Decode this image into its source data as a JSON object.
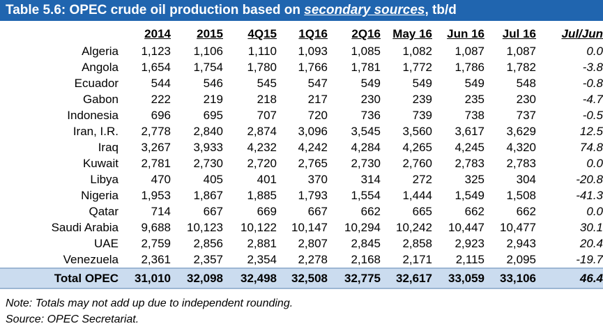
{
  "title": {
    "prefix": "Table 5.6: OPEC crude oil production based on ",
    "emphasis": "secondary sources",
    "suffix": ", tb/d"
  },
  "table": {
    "columns": [
      "2014",
      "2015",
      "4Q15",
      "1Q16",
      "2Q16",
      "May 16",
      "Jun 16",
      "Jul 16",
      "Jul/Jun"
    ],
    "rows": [
      {
        "name": "Algeria",
        "values": [
          "1,123",
          "1,106",
          "1,110",
          "1,093",
          "1,085",
          "1,082",
          "1,087",
          "1,087",
          "0.0"
        ]
      },
      {
        "name": "Angola",
        "values": [
          "1,654",
          "1,754",
          "1,780",
          "1,766",
          "1,781",
          "1,772",
          "1,786",
          "1,782",
          "-3.8"
        ]
      },
      {
        "name": "Ecuador",
        "values": [
          "544",
          "546",
          "545",
          "547",
          "549",
          "549",
          "549",
          "548",
          "-0.8"
        ]
      },
      {
        "name": "Gabon",
        "values": [
          "222",
          "219",
          "218",
          "217",
          "230",
          "239",
          "235",
          "230",
          "-4.7"
        ]
      },
      {
        "name": "Indonesia",
        "values": [
          "696",
          "695",
          "707",
          "720",
          "736",
          "739",
          "738",
          "737",
          "-0.5"
        ]
      },
      {
        "name": "Iran, I.R.",
        "values": [
          "2,778",
          "2,840",
          "2,874",
          "3,096",
          "3,545",
          "3,560",
          "3,617",
          "3,629",
          "12.5"
        ]
      },
      {
        "name": "Iraq",
        "values": [
          "3,267",
          "3,933",
          "4,232",
          "4,242",
          "4,284",
          "4,265",
          "4,245",
          "4,320",
          "74.8"
        ]
      },
      {
        "name": "Kuwait",
        "values": [
          "2,781",
          "2,730",
          "2,720",
          "2,765",
          "2,730",
          "2,760",
          "2,783",
          "2,783",
          "0.0"
        ]
      },
      {
        "name": "Libya",
        "values": [
          "470",
          "405",
          "401",
          "370",
          "314",
          "272",
          "325",
          "304",
          "-20.8"
        ]
      },
      {
        "name": "Nigeria",
        "values": [
          "1,953",
          "1,867",
          "1,885",
          "1,793",
          "1,554",
          "1,444",
          "1,549",
          "1,508",
          "-41.3"
        ]
      },
      {
        "name": "Qatar",
        "values": [
          "714",
          "667",
          "669",
          "667",
          "662",
          "665",
          "662",
          "662",
          "0.0"
        ]
      },
      {
        "name": "Saudi Arabia",
        "values": [
          "9,688",
          "10,123",
          "10,122",
          "10,147",
          "10,294",
          "10,242",
          "10,447",
          "10,477",
          "30.1"
        ]
      },
      {
        "name": "UAE",
        "values": [
          "2,759",
          "2,856",
          "2,881",
          "2,807",
          "2,845",
          "2,858",
          "2,923",
          "2,943",
          "20.4"
        ]
      },
      {
        "name": "Venezuela",
        "values": [
          "2,361",
          "2,357",
          "2,354",
          "2,278",
          "2,168",
          "2,171",
          "2,115",
          "2,095",
          "-19.7"
        ]
      }
    ],
    "total": {
      "name": "Total  OPEC",
      "values": [
        "31,010",
        "32,098",
        "32,498",
        "32,508",
        "32,775",
        "32,617",
        "33,059",
        "33,106",
        "46.4"
      ]
    }
  },
  "notes": {
    "note": "Note: Totals may not add up due to independent rounding.",
    "source": "Source: OPEC Secretariat."
  },
  "colors": {
    "header_bar": "#2065AF",
    "total_row_bg": "#CBDCEF",
    "total_row_border": "#9CB6D3"
  }
}
